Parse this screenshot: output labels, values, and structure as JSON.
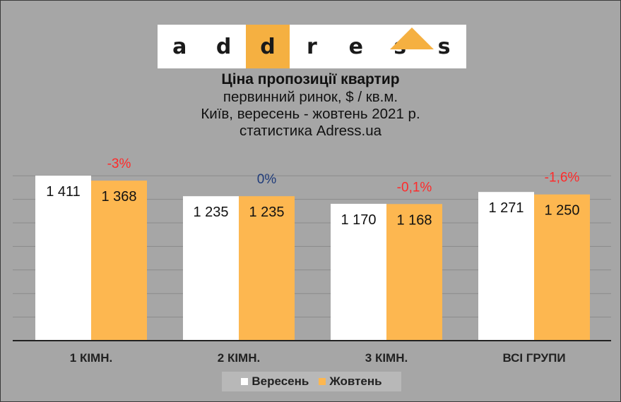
{
  "logo": {
    "letters": [
      "a",
      "d",
      "d",
      "r",
      "e",
      "s",
      "s"
    ],
    "highlight_index": 2,
    "highlight_color": "#f5b041",
    "cell_color": "#ffffff"
  },
  "header": {
    "title": "Ціна пропозиції квартир",
    "line2": "первинний ринок, $ / кв.м.",
    "line3": "Київ, вересень - жовтень 2021 р.",
    "line4": "статистика  Adress.ua"
  },
  "chart_data": {
    "type": "bar",
    "categories": [
      "1 КІМН.",
      "2 КІМН.",
      "3 КІМН.",
      "ВСІ ГРУПИ"
    ],
    "series": [
      {
        "name": "Вересень",
        "values": [
          1411,
          1235,
          1170,
          1271
        ],
        "labels": [
          "1 411",
          "1 235",
          "1 170",
          "1 271"
        ],
        "color": "#ffffff"
      },
      {
        "name": "Жовтень",
        "values": [
          1368,
          1235,
          1168,
          1250
        ],
        "labels": [
          "1 368",
          "1 235",
          "1 168",
          "1 250"
        ],
        "color": "#fdb750"
      }
    ],
    "changes": [
      {
        "text": "-3%",
        "color": "#ff2a2a"
      },
      {
        "text": "0%",
        "color": "#1f3b7a"
      },
      {
        "text": "-0,1%",
        "color": "#ff2a2a"
      },
      {
        "text": "-1,6%",
        "color": "#ff2a2a"
      }
    ],
    "ylim": [
      0,
      1411
    ],
    "grid": true,
    "legend_position": "bottom",
    "xlabel": "",
    "ylabel": ""
  }
}
